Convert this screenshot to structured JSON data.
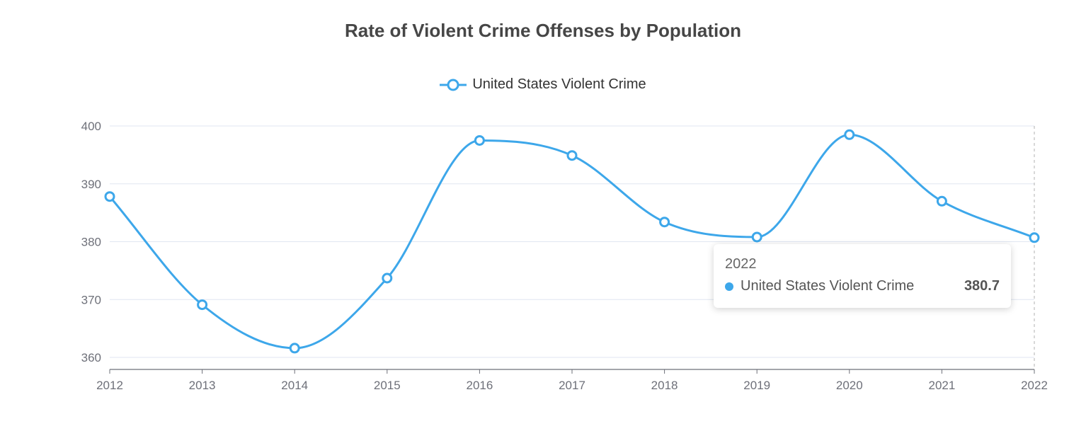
{
  "colors": {
    "series": "#3da7ea",
    "axis": "#6e7079",
    "grid": "#e0e6f1",
    "title": "#464646"
  },
  "chart_data": {
    "type": "line",
    "title": "Rate of Violent Crime Offenses by Population",
    "xlabel": "",
    "ylabel": "",
    "categories": [
      "2012",
      "2013",
      "2014",
      "2015",
      "2016",
      "2017",
      "2018",
      "2019",
      "2020",
      "2021",
      "2022"
    ],
    "series": [
      {
        "name": "United States Violent Crime",
        "values": [
          387.8,
          369.1,
          361.6,
          373.7,
          397.5,
          394.9,
          383.4,
          380.8,
          398.5,
          387.0,
          380.7
        ]
      }
    ],
    "yticks": [
      "360",
      "370",
      "380",
      "390",
      "400"
    ],
    "ylim": [
      358,
      400
    ],
    "grid": true,
    "smooth": true,
    "legend_position": "top-center"
  },
  "tooltip": {
    "title": "2022",
    "series": "United States Violent Crime",
    "value": "380.7"
  }
}
